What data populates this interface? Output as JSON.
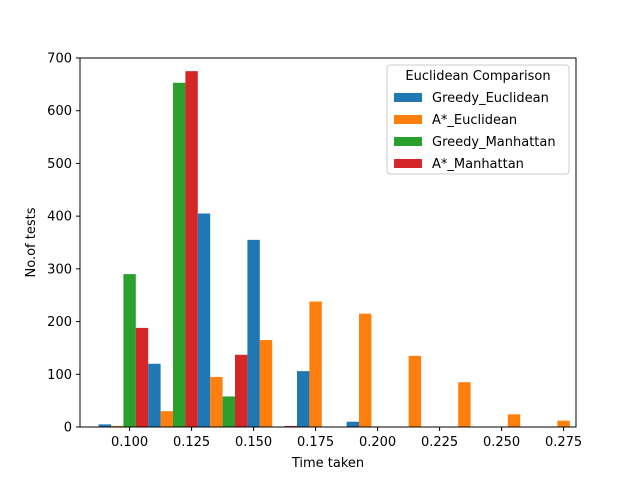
{
  "chart_data": {
    "type": "bar",
    "title": "",
    "xlabel": "Time taken",
    "ylabel": "No.of tests",
    "xlim": [
      0.08,
      0.28
    ],
    "ylim": [
      0,
      700
    ],
    "xticks": [
      0.1,
      0.125,
      0.15,
      0.175,
      0.2,
      0.225,
      0.25,
      0.275
    ],
    "xtick_labels": [
      "0.100",
      "0.125",
      "0.150",
      "0.175",
      "0.200",
      "0.225",
      "0.250",
      "0.275"
    ],
    "yticks": [
      0,
      100,
      200,
      300,
      400,
      500,
      600,
      700
    ],
    "ytick_labels": [
      "0",
      "100",
      "200",
      "300",
      "400",
      "500",
      "600",
      "700"
    ],
    "bin_edges": [
      0.0875,
      0.1075,
      0.1275,
      0.1475,
      0.1675,
      0.1875,
      0.2075,
      0.2275,
      0.2475,
      0.2675,
      0.2875
    ],
    "series": [
      {
        "name": "Greedy_Euclidean",
        "color": "#1f77b4",
        "values": [
          5,
          120,
          405,
          355,
          106,
          10,
          0,
          0,
          0,
          0
        ]
      },
      {
        "name": "A*_Euclidean",
        "color": "#ff7f0e",
        "values": [
          2,
          30,
          95,
          165,
          238,
          215,
          135,
          85,
          24,
          12
        ]
      },
      {
        "name": "Greedy_Manhattan",
        "color": "#2ca02c",
        "values": [
          290,
          653,
          58,
          0,
          0,
          0,
          0,
          0,
          0,
          0
        ]
      },
      {
        "name": "A*_Manhattan",
        "color": "#d62728",
        "values": [
          188,
          675,
          137,
          2,
          0,
          0,
          0,
          0,
          0,
          0
        ]
      }
    ],
    "legend": {
      "title": "Euclidean Comparison",
      "position": "top-right"
    },
    "grid": false
  }
}
